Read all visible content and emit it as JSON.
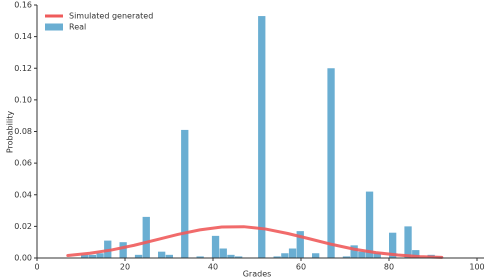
{
  "chart_data": {
    "type": "histogram",
    "xlabel": "Grades",
    "ylabel": "Probability",
    "xlim": [
      0,
      100
    ],
    "xticks": [
      0,
      20,
      40,
      60,
      80,
      100
    ],
    "ylim": [
      0,
      0.16
    ],
    "yticks": [
      {
        "value": 0,
        "label": "0.00"
      },
      {
        "value": 0.02,
        "label": "0.02"
      },
      {
        "value": 0.04,
        "label": "0.04"
      },
      {
        "value": 0.06,
        "label": "0.06"
      },
      {
        "value": 0.08,
        "label": "0.08"
      },
      {
        "value": 0.1,
        "label": "0.10"
      },
      {
        "value": 0.12,
        "label": "0.12"
      },
      {
        "value": 0.14,
        "label": "0.14"
      },
      {
        "value": 0.16,
        "label": "0.16"
      }
    ],
    "legend": "upper left",
    "series": [
      {
        "name": "Simulated generated",
        "type": "line",
        "color": "#ef5b5b",
        "x": [
          7,
          12,
          17,
          22,
          27,
          32,
          37,
          42,
          47,
          52,
          57,
          62,
          67,
          72,
          77,
          82,
          87,
          92
        ],
        "values": [
          0.0016,
          0.003,
          0.0051,
          0.008,
          0.0114,
          0.0149,
          0.0178,
          0.0196,
          0.0198,
          0.0183,
          0.0155,
          0.0121,
          0.0086,
          0.0056,
          0.0034,
          0.0019,
          0.0009,
          0.0004
        ]
      },
      {
        "name": "Real",
        "type": "histogram",
        "color": "#6aaed2",
        "bins": [
          6.5,
          8.25,
          10,
          11.75,
          13.5,
          15.25,
          17,
          18.75,
          20.5,
          22.25,
          24,
          25.75,
          27.5,
          29.25,
          31,
          32.75,
          34.5,
          36.25,
          38,
          39.75,
          41.5,
          43.25,
          45,
          46.75,
          48.5,
          50.25,
          52,
          53.75,
          55.5,
          57.25,
          59,
          60.75,
          62.5,
          64.25,
          66,
          67.75,
          69.5,
          71.25,
          73,
          74.75,
          76.5,
          78.25,
          80,
          81.75,
          83.5,
          85.25,
          87,
          88.75,
          90.5,
          92.25,
          94
        ],
        "values": [
          0,
          0,
          0.002,
          0.002,
          0.003,
          0.011,
          0,
          0.01,
          0,
          0.002,
          0.026,
          0,
          0.004,
          0.002,
          0,
          0.081,
          0,
          0.001,
          0,
          0.014,
          0.006,
          0.002,
          0.001,
          0,
          0,
          0.153,
          0,
          0.001,
          0.003,
          0.006,
          0.017,
          0,
          0.003,
          0,
          0.12,
          0,
          0.001,
          0.008,
          0.004,
          0.042,
          0.003,
          0,
          0.016,
          0,
          0.02,
          0.005,
          0,
          0.002,
          0.001,
          0
        ]
      }
    ]
  }
}
